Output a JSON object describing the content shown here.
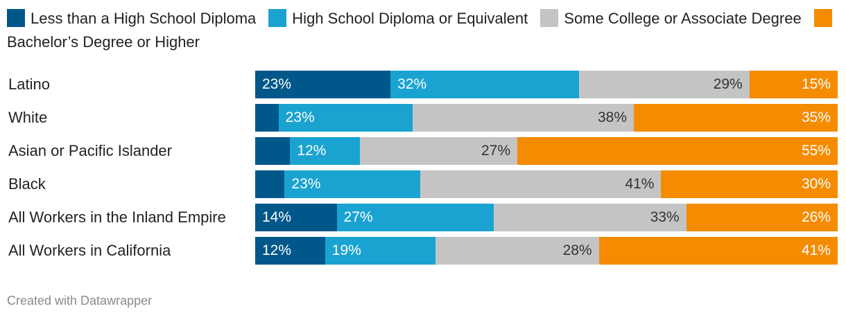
{
  "chart_data": {
    "type": "bar",
    "orientation": "horizontal",
    "stacked": true,
    "normalized": true,
    "legend_position": "top",
    "grid": false,
    "xlim": [
      0,
      100
    ],
    "categories": [
      "Latino",
      "White",
      "Asian or Pacific Islander",
      "Black",
      "All Workers in the Inland Empire",
      "All Workers in California"
    ],
    "series": [
      {
        "name": "Less than a High School Diploma",
        "color": "#00578a",
        "values": [
          23,
          4,
          6,
          5,
          14,
          12
        ],
        "labels": [
          "23%",
          "",
          "",
          "",
          "14%",
          "12%"
        ]
      },
      {
        "name": "High School Diploma or Equivalent",
        "color": "#1aa3d1",
        "values": [
          32,
          23,
          12,
          23,
          27,
          19
        ],
        "labels": [
          "32%",
          "23%",
          "12%",
          "23%",
          "27%",
          "19%"
        ]
      },
      {
        "name": "Some College or Associate Degree",
        "color": "#c4c4c4",
        "values": [
          29,
          38,
          27,
          41,
          33,
          28
        ],
        "labels": [
          "29%",
          "38%",
          "27%",
          "41%",
          "33%",
          "28%"
        ]
      },
      {
        "name": "Bachelor’s Degree or Higher",
        "color": "#f58b00",
        "values": [
          15,
          35,
          55,
          30,
          26,
          41
        ],
        "labels": [
          "15%",
          "35%",
          "55%",
          "30%",
          "26%",
          "41%"
        ]
      }
    ]
  },
  "footer": {
    "credit": "Created with Datawrapper"
  }
}
